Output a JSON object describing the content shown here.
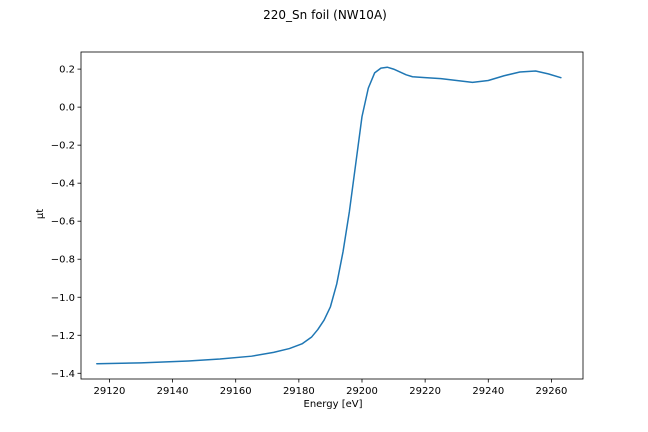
{
  "chart_data": {
    "type": "line",
    "title": "220_Sn foil (NW10A)",
    "xlabel": "Energy [eV]",
    "ylabel": "μt",
    "xlim": [
      29111,
      29270
    ],
    "ylim": [
      -1.43,
      0.29
    ],
    "xticks": [
      29120,
      29140,
      29160,
      29180,
      29200,
      29220,
      29240,
      29260
    ],
    "yticks": [
      0.2,
      0.0,
      -0.2,
      -0.4,
      -0.6,
      -0.8,
      -1.0,
      -1.2,
      -1.4
    ],
    "xtick_labels": [
      "29120",
      "29140",
      "29160",
      "29180",
      "29200",
      "29220",
      "29240",
      "29260"
    ],
    "ytick_labels": [
      "0.2",
      "0.0",
      "−0.2",
      "−0.4",
      "−0.6",
      "−0.8",
      "−1.0",
      "−1.2",
      "−1.4"
    ],
    "grid": false,
    "color": "#1f77b4",
    "series": [
      {
        "x": [
          29116,
          29130,
          29145,
          29155,
          29165,
          29172,
          29177,
          29181,
          29184,
          29186,
          29188,
          29190,
          29192,
          29194,
          29196,
          29198,
          29200,
          29202,
          29204,
          29206,
          29208,
          29210,
          29212,
          29214,
          29216,
          29220,
          29225,
          29230,
          29235,
          29240,
          29245,
          29250,
          29255,
          29259,
          29263
        ],
        "y": [
          -1.35,
          -1.345,
          -1.335,
          -1.325,
          -1.31,
          -1.29,
          -1.27,
          -1.245,
          -1.21,
          -1.17,
          -1.12,
          -1.05,
          -0.93,
          -0.76,
          -0.55,
          -0.3,
          -0.05,
          0.1,
          0.18,
          0.205,
          0.21,
          0.2,
          0.185,
          0.17,
          0.16,
          0.155,
          0.15,
          0.14,
          0.13,
          0.14,
          0.165,
          0.185,
          0.19,
          0.175,
          0.155
        ]
      }
    ]
  }
}
